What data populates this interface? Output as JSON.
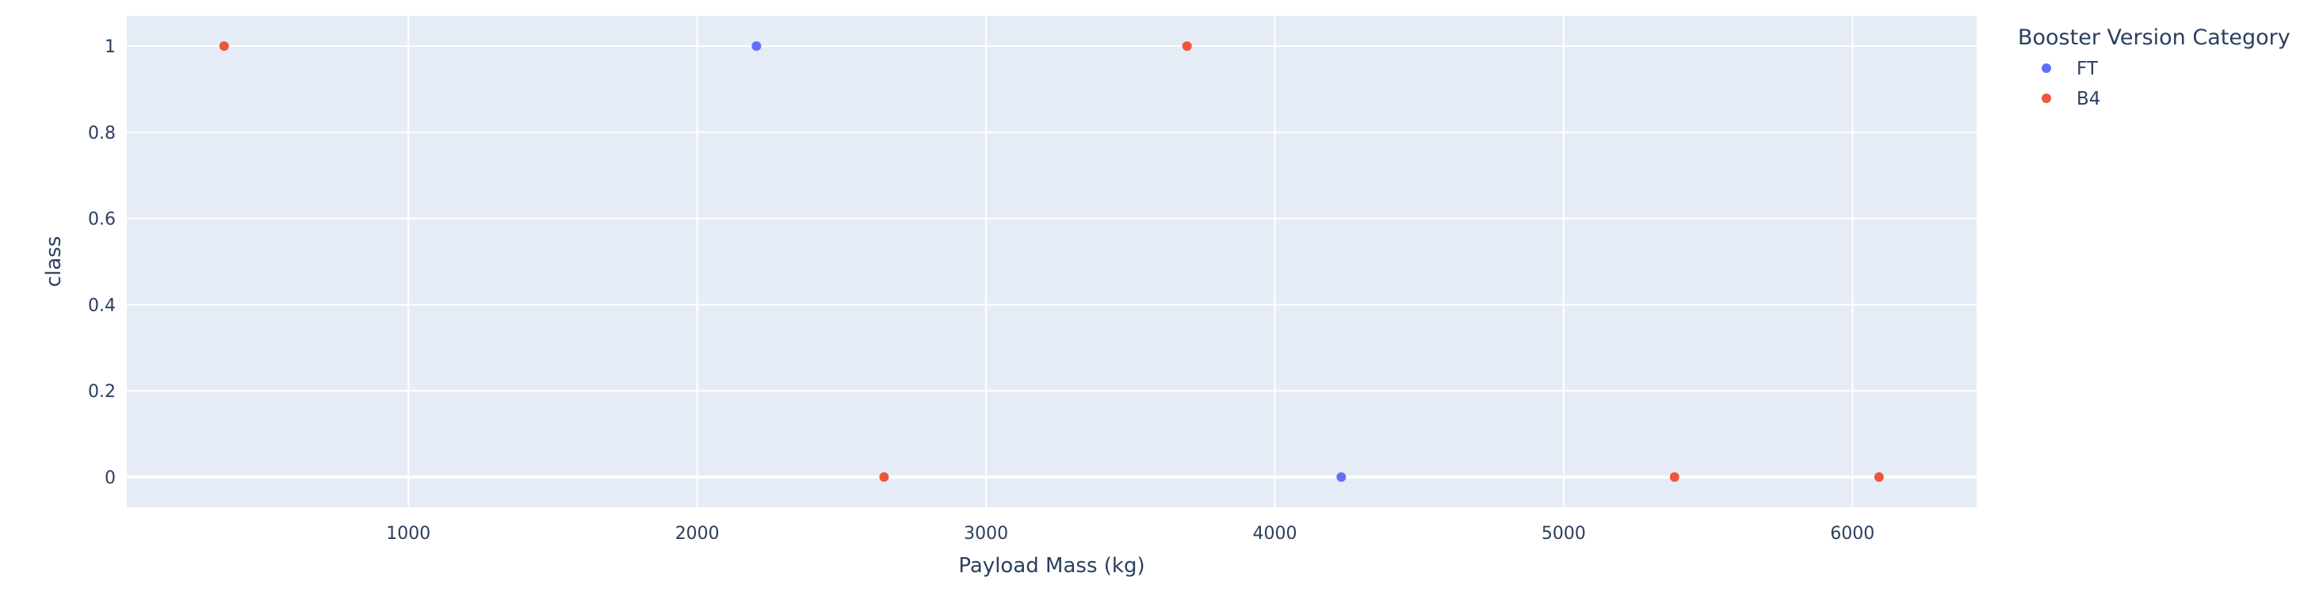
{
  "chart_data": {
    "type": "scatter",
    "xlabel": "Payload Mass (kg)",
    "ylabel": "class",
    "xlim": [
      25,
      6430
    ],
    "ylim": [
      -0.07,
      1.07
    ],
    "xticks": [
      1000,
      2000,
      3000,
      4000,
      5000,
      6000
    ],
    "xtick_labels": [
      "1000",
      "2000",
      "3000",
      "4000",
      "5000",
      "6000"
    ],
    "yticks": [
      0,
      0.2,
      0.4,
      0.6,
      0.8,
      1
    ],
    "ytick_labels": [
      "0",
      "0.2",
      "0.4",
      "0.6",
      "0.8",
      "1"
    ],
    "grid": true,
    "legend": {
      "title": "Booster Version Category",
      "placement": "top-right-outside"
    },
    "colors": {
      "plot_background": "#e5ecf6",
      "grid": "#ffffff",
      "text": "#2a3f5f"
    },
    "series": [
      {
        "name": "FT",
        "color": "#636efa",
        "x": [
          2205,
          4230
        ],
        "y": [
          1,
          0
        ]
      },
      {
        "name": "B4",
        "color": "#ef553b",
        "x": [
          362,
          3696,
          2647,
          5384,
          6092
        ],
        "y": [
          1,
          1,
          0,
          0,
          0
        ]
      }
    ]
  }
}
